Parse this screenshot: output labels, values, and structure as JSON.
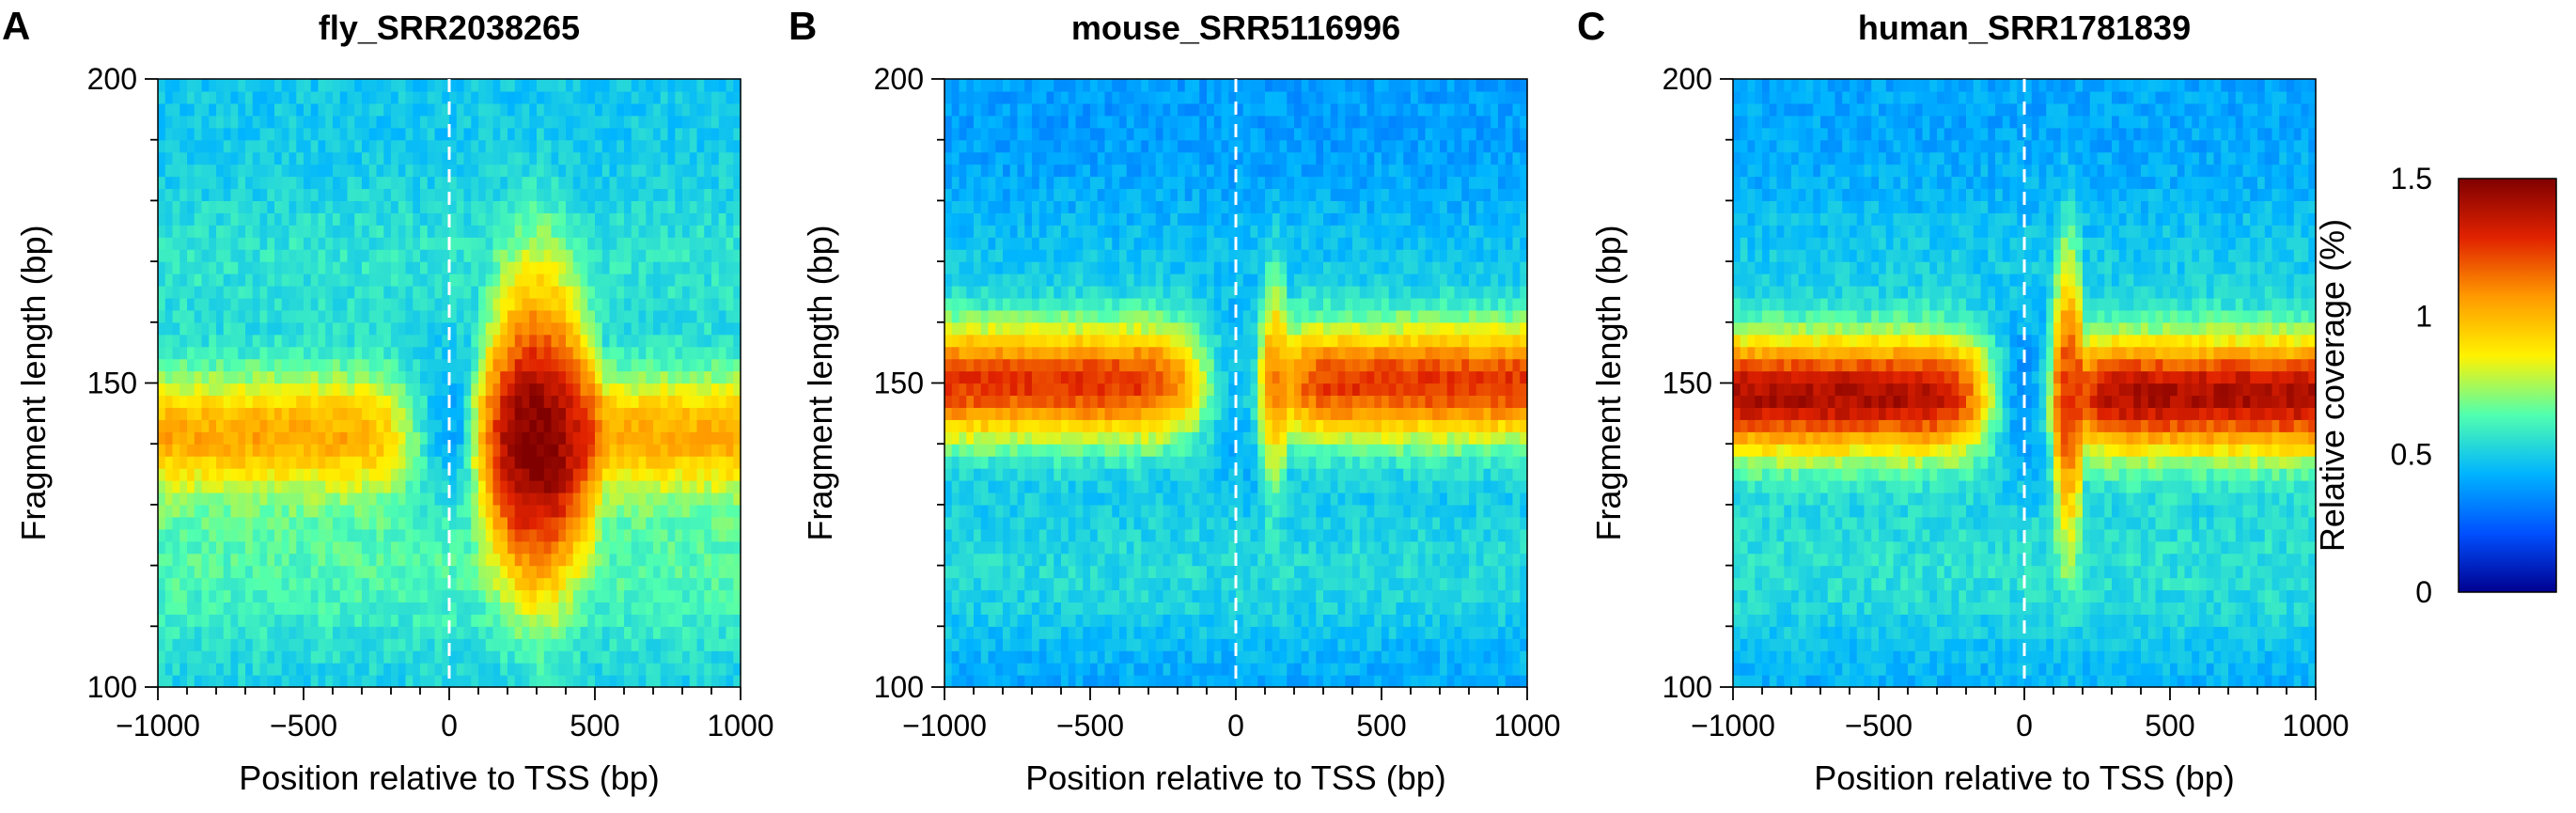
{
  "colors": {
    "colormap": [
      "#00008F",
      "#0050FF",
      "#00B4FF",
      "#50FFAF",
      "#FFF200",
      "#FF9A00",
      "#E12200",
      "#800000"
    ],
    "tss_line": "#ffffff"
  },
  "chart_data": [
    {
      "panel": "A",
      "type": "heatmap",
      "title": "fly_SRR2038265",
      "xlabel": "Position relative to TSS (bp)",
      "ylabel": "Fragment length (bp)",
      "xlim": [
        -1000,
        1000
      ],
      "ylim": [
        100,
        200
      ],
      "xticks": [
        -1000,
        -500,
        0,
        500,
        1000
      ],
      "xtick_labels": [
        "−1000",
        "−500",
        "0",
        "500",
        "1000"
      ],
      "yticks": [
        100,
        150,
        200
      ],
      "ytick_labels": [
        "100",
        "150",
        "200"
      ],
      "tss_marker": 0,
      "profile": {
        "peak_length": 142,
        "flank_value": 1.02,
        "tss_value": 0.4,
        "plus1_value": 1.5,
        "plus1_center": 300,
        "plus1_halfwidth": 250,
        "plus1_spread": 14,
        "background": 0.48
      }
    },
    {
      "panel": "B",
      "type": "heatmap",
      "title": "mouse_SRR5116996",
      "xlabel": "Position relative to TSS (bp)",
      "ylabel": "Fragment length (bp)",
      "xlim": [
        -1000,
        1000
      ],
      "ylim": [
        100,
        200
      ],
      "xticks": [
        -1000,
        -500,
        0,
        500,
        1000
      ],
      "xtick_labels": [
        "−1000",
        "−500",
        "0",
        "500",
        "1000"
      ],
      "yticks": [
        100,
        150,
        200
      ],
      "ytick_labels": [
        "100",
        "150",
        "200"
      ],
      "tss_marker": 0,
      "profile": {
        "peak_length": 150,
        "flank_value": 1.25,
        "tss_value": 0.45,
        "plus1_value": 1.1,
        "plus1_center": 130,
        "plus1_halfwidth": 60,
        "plus1_spread": 6,
        "background": 0.38
      }
    },
    {
      "panel": "C",
      "type": "heatmap",
      "title": "human_SRR1781839",
      "xlabel": "Position relative to TSS (bp)",
      "ylabel": "Fragment length (bp)",
      "xlim": [
        -1000,
        1000
      ],
      "ylim": [
        100,
        200
      ],
      "xticks": [
        -1000,
        -500,
        0,
        500,
        1000
      ],
      "xtick_labels": [
        "−1000",
        "−500",
        "0",
        "500",
        "1000"
      ],
      "yticks": [
        100,
        150,
        200
      ],
      "ytick_labels": [
        "100",
        "150",
        "200"
      ],
      "tss_marker": 0,
      "profile": {
        "peak_length": 148,
        "flank_value": 1.4,
        "tss_value": 0.35,
        "plus1_value": 1.25,
        "plus1_center": 150,
        "plus1_halfwidth": 70,
        "plus1_spread": 12,
        "background": 0.4
      }
    }
  ],
  "colorbar": {
    "label": "Relative coverage (%)",
    "range": [
      0,
      1.5
    ],
    "ticks": [
      0,
      0.5,
      1,
      1.5
    ],
    "tick_labels": [
      "0",
      "0.5",
      "1",
      "1.5"
    ]
  }
}
